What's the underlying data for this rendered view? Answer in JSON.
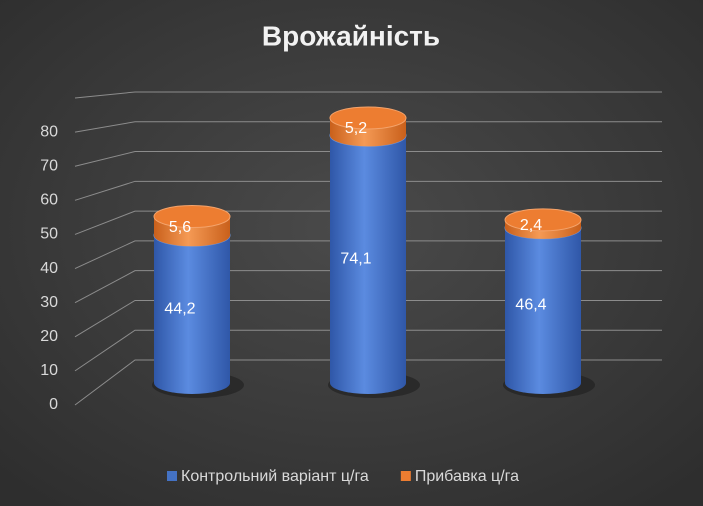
{
  "chart_data": {
    "type": "bar3d-cylinder-stacked",
    "title": "Врожайність",
    "categories": [
      null,
      null,
      null
    ],
    "series": [
      {
        "name": "Контрольний варіант ц/га",
        "color": "#4472c4",
        "values": [
          44.2,
          74.1,
          46.4
        ],
        "value_labels": [
          "44,2",
          "74,1",
          "46,4"
        ]
      },
      {
        "name": "Прибавка ц/га",
        "color": "#ed7d31",
        "values": [
          5.6,
          5.2,
          2.4
        ],
        "value_labels": [
          "5,6",
          "5,2",
          "2,4"
        ]
      }
    ],
    "ylim": [
      0,
      90
    ],
    "yticks": [
      0,
      10,
      20,
      30,
      40,
      50,
      60,
      70,
      80
    ],
    "grid": true,
    "legend": "bottom"
  }
}
